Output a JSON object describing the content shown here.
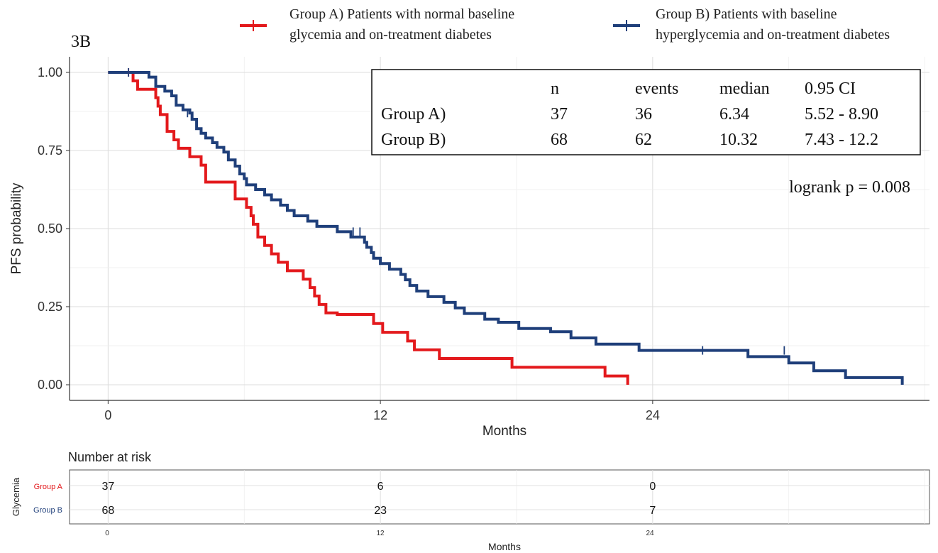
{
  "panel_label": "3B",
  "legend": [
    {
      "line1": "Group A) Patients with normal baseline",
      "line2": "glycemia and on-treatment diabetes",
      "color": "#e3191c"
    },
    {
      "line1": "Group B) Patients with baseline",
      "line2": "hyperglycemia and on-treatment diabetes",
      "color": "#1f3f7a"
    }
  ],
  "summary_table": {
    "headers": [
      "",
      "n",
      "events",
      "median",
      "0.95 CI"
    ],
    "rows": [
      [
        "Group A)",
        "37",
        "36",
        "6.34",
        "5.52 - 8.90"
      ],
      [
        "Group B)",
        "68",
        "62",
        "10.32",
        "7.43 - 12.2"
      ]
    ]
  },
  "logrank": "logrank p = 0.008",
  "risk_table": {
    "title": "Number at risk",
    "ylabel": "Glycemia",
    "xlabel": "Months",
    "x_ticks": [
      "0",
      "12",
      "24"
    ],
    "rows": [
      {
        "label": "Group A",
        "color": "#e3191c",
        "values": [
          "37",
          "6",
          "0"
        ]
      },
      {
        "label": "Group B",
        "color": "#1f3f7a",
        "values": [
          "68",
          "23",
          "7"
        ]
      }
    ]
  },
  "chart_data": {
    "type": "line",
    "step": true,
    "xlabel": "Months",
    "ylabel": "PFS probability",
    "xlim": [
      -1.7,
      36.2
    ],
    "ylim": [
      -0.05,
      1.05
    ],
    "x_ticks": [
      0,
      12,
      24
    ],
    "x_tick_labels": [
      "0",
      "12",
      "24"
    ],
    "y_ticks": [
      0,
      0.25,
      0.5,
      0.75,
      1.0
    ],
    "y_tick_labels": [
      "0.00",
      "0.25",
      "0.50",
      "0.75",
      "1.00"
    ],
    "grid": true,
    "series": [
      {
        "name": "Group A",
        "color": "#e3191c",
        "x": [
          0,
          1.1,
          1.3,
          2.1,
          2.2,
          2.3,
          2.6,
          2.9,
          3.1,
          3.6,
          4.1,
          4.3,
          5.6,
          6.1,
          6.3,
          6.4,
          6.6,
          6.9,
          7.2,
          7.5,
          7.9,
          8.6,
          8.9,
          9.1,
          9.3,
          9.6,
          10.1,
          10.6,
          11.7,
          12.0,
          12.1,
          13.2,
          13.5,
          14.6,
          17.8,
          21.9,
          22.9
        ],
        "y": [
          1.0,
          0.973,
          0.946,
          0.919,
          0.892,
          0.865,
          0.811,
          0.784,
          0.757,
          0.73,
          0.703,
          0.649,
          0.595,
          0.568,
          0.541,
          0.514,
          0.473,
          0.446,
          0.419,
          0.392,
          0.365,
          0.338,
          0.311,
          0.284,
          0.257,
          0.23,
          0.225,
          0.225,
          0.196,
          0.196,
          0.168,
          0.14,
          0.112,
          0.084,
          0.056,
          0.028,
          0.0
        ],
        "censor_x": [
          0.9
        ],
        "censor_y": [
          1.0
        ]
      },
      {
        "name": "Group B",
        "color": "#1f3f7a",
        "x": [
          0,
          1.8,
          2.1,
          2.5,
          2.8,
          3.0,
          3.3,
          3.6,
          3.7,
          3.9,
          4.1,
          4.3,
          4.6,
          4.8,
          5.1,
          5.3,
          5.6,
          5.8,
          6.0,
          6.1,
          6.5,
          6.9,
          7.2,
          7.6,
          7.9,
          8.2,
          8.8,
          9.2,
          10.1,
          10.7,
          11.3,
          11.4,
          11.6,
          11.7,
          12.0,
          12.4,
          12.9,
          13.1,
          13.3,
          13.6,
          14.1,
          14.8,
          15.3,
          15.7,
          16.6,
          17.2,
          18.1,
          19.5,
          20.4,
          21.5,
          23.4,
          27.2,
          28.2,
          29.0,
          30.0,
          31.1,
          32.5,
          33.4,
          35.0
        ],
        "y": [
          1.0,
          0.985,
          0.955,
          0.94,
          0.925,
          0.895,
          0.88,
          0.87,
          0.85,
          0.82,
          0.805,
          0.79,
          0.775,
          0.76,
          0.745,
          0.72,
          0.7,
          0.675,
          0.66,
          0.64,
          0.625,
          0.608,
          0.592,
          0.575,
          0.558,
          0.541,
          0.524,
          0.507,
          0.49,
          0.473,
          0.456,
          0.44,
          0.423,
          0.405,
          0.388,
          0.37,
          0.353,
          0.336,
          0.318,
          0.3,
          0.282,
          0.264,
          0.246,
          0.228,
          0.21,
          0.2,
          0.18,
          0.17,
          0.15,
          0.13,
          0.11,
          0.11,
          0.09,
          0.09,
          0.07,
          0.045,
          0.023,
          0.023,
          0.0
        ],
        "censor_x": [
          0.9,
          3.5,
          10.8,
          11.1,
          26.2,
          29.8
        ],
        "censor_y": [
          1.0,
          0.87,
          0.49,
          0.49,
          0.11,
          0.11
        ]
      }
    ]
  }
}
